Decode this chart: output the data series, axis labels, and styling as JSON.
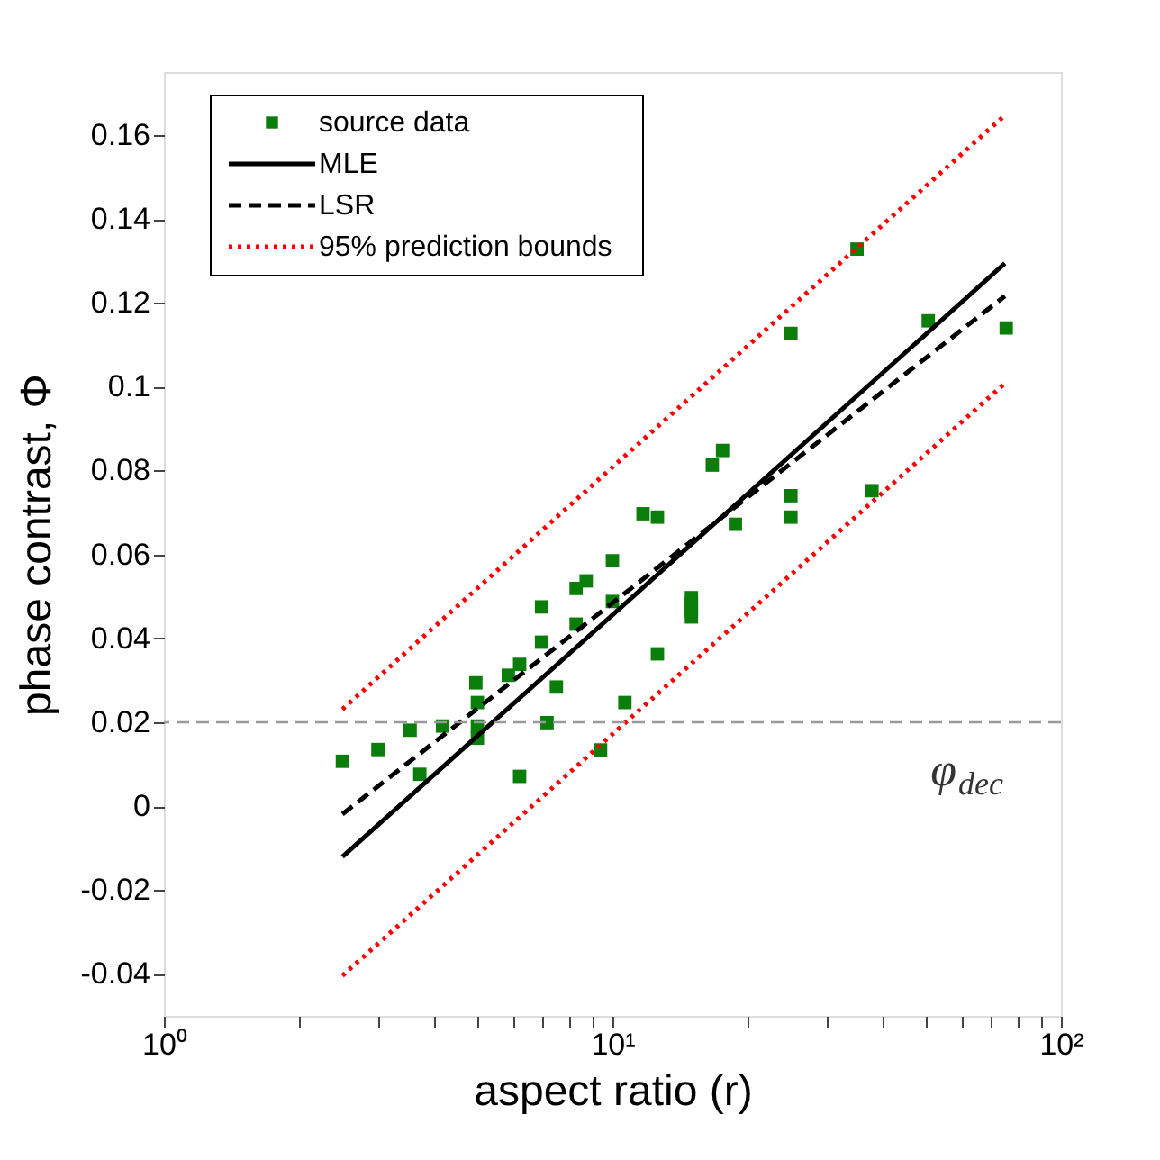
{
  "chart_data": {
    "type": "scatter",
    "xlabel": "aspect ratio (r)",
    "ylabel": "phase contrast, Φ",
    "log": "x",
    "grid": false,
    "legend": "top left",
    "xlim": [
      1,
      100
    ],
    "ylim": [
      -0.05,
      0.175
    ],
    "xticks": [
      {
        "value": 1,
        "label": "10⁰"
      },
      {
        "value": 2,
        "label": null
      },
      {
        "value": 3,
        "label": null
      },
      {
        "value": 4,
        "label": null
      },
      {
        "value": 5,
        "label": null
      },
      {
        "value": 6,
        "label": null
      },
      {
        "value": 7,
        "label": null
      },
      {
        "value": 8,
        "label": null
      },
      {
        "value": 9,
        "label": null
      },
      {
        "value": 10,
        "label": "10¹"
      },
      {
        "value": 20,
        "label": null
      },
      {
        "value": 30,
        "label": null
      },
      {
        "value": 40,
        "label": null
      },
      {
        "value": 50,
        "label": null
      },
      {
        "value": 60,
        "label": null
      },
      {
        "value": 70,
        "label": null
      },
      {
        "value": 80,
        "label": null
      },
      {
        "value": 90,
        "label": null
      },
      {
        "value": 100,
        "label": "10²"
      }
    ],
    "yticks": [
      -0.04,
      -0.02,
      0,
      0.02,
      0.04,
      0.06,
      0.08,
      0.1,
      0.12,
      0.14,
      0.16
    ],
    "series": [
      {
        "name": "source data",
        "marker": "square",
        "color": "#0b7d0b",
        "x": [
          2.5,
          3.0,
          3.54,
          3.72,
          4.18,
          4.96,
          5.0,
          5.0,
          5.0,
          5.86,
          6.21,
          6.21,
          6.95,
          6.95,
          7.15,
          7.5,
          8.3,
          8.74,
          8.3,
          10,
          10,
          9.41,
          10.66,
          12.6,
          15.0,
          15.0,
          15.0,
          15.0,
          11.7,
          12.6,
          16.7,
          17.6,
          18.8,
          25.0,
          25.0,
          25.0,
          35.1,
          37.9,
          50.6,
          75.5
        ],
        "values": [
          0.0107,
          0.0135,
          0.0181,
          0.0076,
          0.0191,
          0.0294,
          0.0247,
          0.0191,
          0.0162,
          0.0312,
          0.0338,
          0.0071,
          0.0475,
          0.0391,
          0.0199,
          0.0284,
          0.0519,
          0.0537,
          0.0434,
          0.0585,
          0.0488,
          0.0134,
          0.0247,
          0.0363,
          0.0497,
          0.0481,
          0.0466,
          0.0451,
          0.0697,
          0.0689,
          0.0813,
          0.0848,
          0.0672,
          0.1127,
          0.074,
          0.0689,
          0.1328,
          0.0752,
          0.1157,
          0.114
        ]
      },
      {
        "name": "MLE",
        "type": "line",
        "line_style": "solid",
        "color": "#000000",
        "x": [
          2.5,
          75
        ],
        "values": [
          -0.0121,
          0.1294
        ]
      },
      {
        "name": "LSR",
        "type": "line",
        "line_style": "dashed",
        "color": "#000000",
        "x": [
          2.5,
          75
        ],
        "values": [
          -0.0019,
          0.1216
        ]
      },
      {
        "name": "95% prediction bounds",
        "type": "line",
        "line_style": "dotted",
        "color": "#ff0000",
        "x": [
          2.5,
          75
        ],
        "values": [
          0.0231,
          0.1647
        ]
      },
      {
        "type": "line",
        "line_style": "dotted",
        "color": "#ff0000",
        "x": [
          2.5,
          75
        ],
        "values": [
          -0.0404,
          0.1008
        ]
      }
    ],
    "ref_lines": [
      {
        "axis": "y",
        "value": 0.02,
        "label": "φ$_{dec}$",
        "color": "#999999",
        "line_style": "dashed"
      }
    ]
  }
}
